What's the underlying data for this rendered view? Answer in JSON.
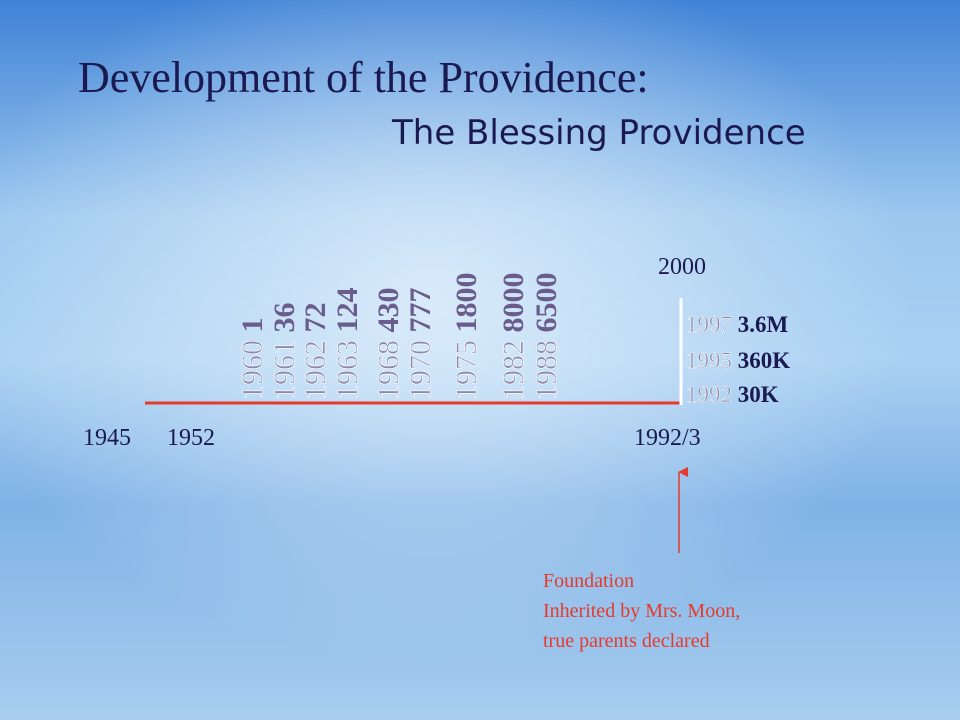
{
  "header": {
    "title": "Development of the Providence:",
    "subtitle": "The Blessing Providence"
  },
  "columns": [
    {
      "year": "1960",
      "count": "1"
    },
    {
      "year": "1961",
      "count": "36"
    },
    {
      "year": "1962",
      "count": "72"
    },
    {
      "year": "1963",
      "count": "124"
    },
    {
      "year": "1968",
      "count": "430"
    },
    {
      "year": "1970",
      "count": "777"
    },
    {
      "year": "1975",
      "count": "1800"
    },
    {
      "year": "1982",
      "count": "8000"
    },
    {
      "year": "1988",
      "count": "6500"
    }
  ],
  "top_label": "2000",
  "right": [
    {
      "year": "1997",
      "count": "3.6M"
    },
    {
      "year": "1995",
      "count": "360K"
    },
    {
      "year": "1992",
      "count": "30K"
    }
  ],
  "axis_labels": [
    "1945",
    "1952",
    "1992/3"
  ],
  "annotation": [
    "Foundation",
    "Inherited by Mrs. Moon,",
    "true parents declared"
  ]
}
